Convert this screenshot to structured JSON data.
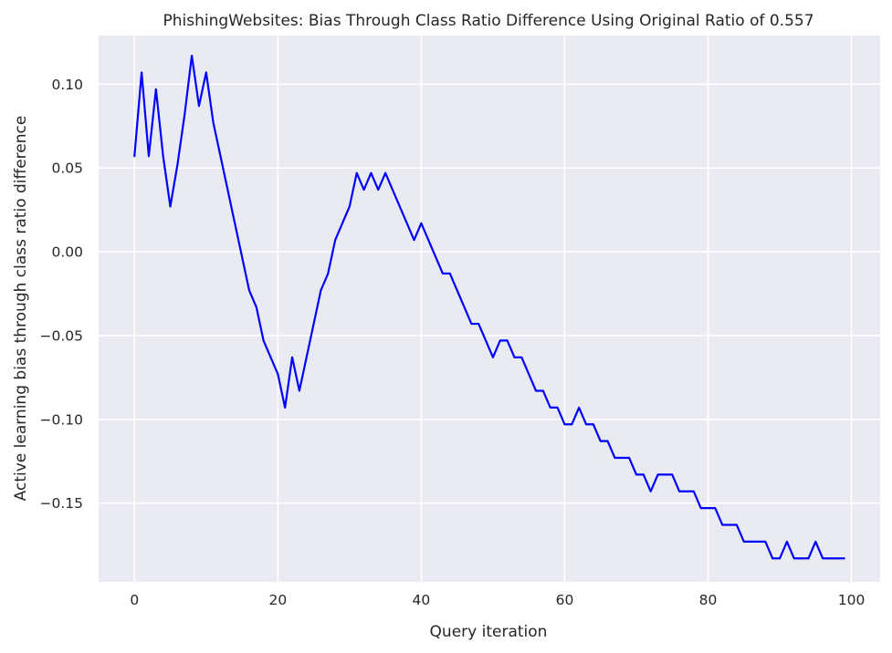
{
  "chart_data": {
    "type": "line",
    "title": "PhishingWebsites: Bias Through Class Ratio Difference Using Original Ratio of 0.557",
    "xlabel": "Query iteration",
    "ylabel": "Active learning bias through class ratio difference",
    "xlim": [
      -5,
      104
    ],
    "ylim": [
      -0.197,
      0.129
    ],
    "xticks": [
      0,
      20,
      40,
      60,
      80,
      100
    ],
    "xtick_labels": [
      "0",
      "20",
      "40",
      "60",
      "80",
      "100"
    ],
    "yticks": [
      0.1,
      0.05,
      0.0,
      -0.05,
      -0.1,
      -0.15
    ],
    "ytick_labels": [
      "0.10",
      "0.05",
      "0.00",
      "−0.05",
      "−0.10",
      "−0.15"
    ],
    "grid": true,
    "background": "#eaeaf2",
    "grid_color": "#ffffff",
    "line_color": "#0000ff",
    "series": [
      {
        "x": [
          0,
          1,
          2,
          3,
          4,
          5,
          6,
          7,
          8,
          9,
          10,
          11,
          12,
          13,
          14,
          15,
          16,
          17,
          18,
          19,
          20,
          21,
          22,
          23,
          24,
          25,
          26,
          27,
          28,
          29,
          30,
          31,
          32,
          33,
          34,
          35,
          36,
          37,
          38,
          39,
          40,
          41,
          42,
          43,
          44,
          45,
          46,
          47,
          48,
          49,
          50,
          51,
          52,
          53,
          54,
          55,
          56,
          57,
          58,
          59,
          60,
          61,
          62,
          63,
          64,
          65,
          66,
          67,
          68,
          69,
          70,
          71,
          72,
          73,
          74,
          75,
          76,
          77,
          78,
          79,
          80,
          81,
          82,
          83,
          84,
          85,
          86,
          87,
          88,
          89,
          90,
          91,
          92,
          93,
          94,
          95,
          96,
          97,
          98,
          99
        ],
        "values": [
          0.057,
          0.107,
          0.057,
          0.097,
          0.057,
          0.027,
          0.052,
          0.082,
          0.117,
          0.087,
          0.107,
          0.077,
          0.057,
          0.037,
          0.017,
          -0.003,
          -0.023,
          -0.033,
          -0.053,
          -0.063,
          -0.073,
          -0.093,
          -0.063,
          -0.083,
          -0.063,
          -0.043,
          -0.023,
          -0.013,
          0.007,
          0.017,
          0.027,
          0.047,
          0.037,
          0.047,
          0.037,
          0.047,
          0.037,
          0.027,
          0.017,
          0.007,
          0.017,
          0.007,
          -0.003,
          -0.013,
          -0.013,
          -0.023,
          -0.033,
          -0.043,
          -0.043,
          -0.053,
          -0.063,
          -0.053,
          -0.053,
          -0.063,
          -0.063,
          -0.073,
          -0.083,
          -0.083,
          -0.093,
          -0.093,
          -0.103,
          -0.103,
          -0.093,
          -0.103,
          -0.103,
          -0.113,
          -0.113,
          -0.123,
          -0.123,
          -0.123,
          -0.133,
          -0.133,
          -0.143,
          -0.133,
          -0.133,
          -0.133,
          -0.143,
          -0.143,
          -0.143,
          -0.153,
          -0.153,
          -0.153,
          -0.163,
          -0.163,
          -0.163,
          -0.173,
          -0.173,
          -0.173,
          -0.173,
          -0.183,
          -0.183,
          -0.173,
          -0.183,
          -0.183,
          -0.183,
          -0.173,
          -0.183,
          -0.183,
          -0.183,
          -0.183
        ]
      }
    ]
  }
}
